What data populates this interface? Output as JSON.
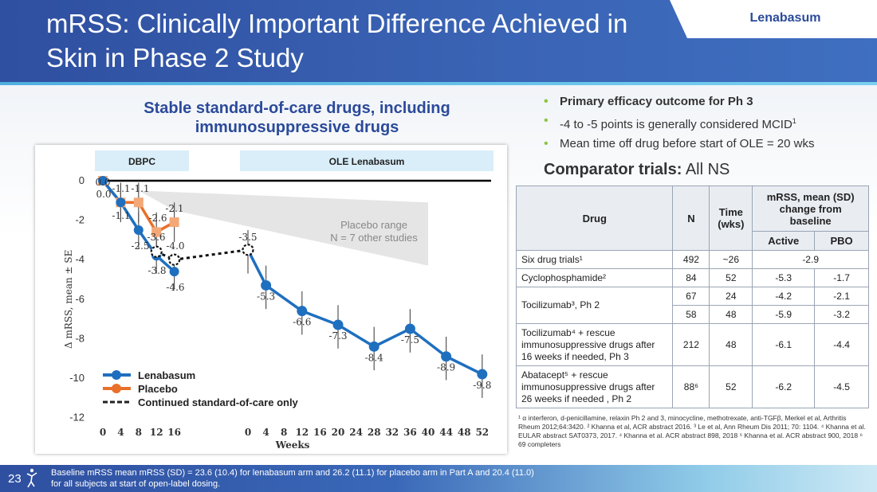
{
  "header": {
    "title": "mRSS: Clinically Important Difference Achieved in Skin in Phase 2 Study",
    "brand": "Lenabasum"
  },
  "chart_heading": "Stable standard-of-care drugs, including immunosuppressive drugs",
  "colors": {
    "lenabasum": "#1f6fbf",
    "placebo": "#e8702a",
    "placebo_marker": "#f4a877",
    "header": "#2f4fa0",
    "bullet": "#8cc63f"
  },
  "chart_data": {
    "type": "line",
    "title": "",
    "xlabel": "Weeks",
    "ylabel": "Δ mRSS, mean ± SE",
    "ylim": [
      -12,
      0
    ],
    "yticks": [
      0,
      -2,
      -4,
      -6,
      -8,
      -10,
      -12
    ],
    "ytick_labels": [
      "0",
      "-2",
      "-4",
      "-6",
      "-8",
      "-10",
      "-12"
    ],
    "xticks_part_a": [
      0,
      4,
      8,
      12,
      16
    ],
    "xticks_ole": [
      0,
      4,
      8,
      12,
      16,
      20,
      24,
      28,
      32,
      36,
      40,
      44,
      48,
      52
    ],
    "section_labels": {
      "part_a": "DBPC",
      "ole": "OLE Lenabasum"
    },
    "series": [
      {
        "name": "Lenabasum",
        "segment": "part_a",
        "x": [
          0,
          4,
          8,
          12,
          16
        ],
        "values": [
          0.0,
          -1.1,
          -2.5,
          -3.8,
          -4.6
        ],
        "labels": [
          "0.0",
          "-1.1",
          "-2.5",
          "-3.8",
          "-4.6"
        ]
      },
      {
        "name": "Placebo",
        "segment": "part_a",
        "x": [
          0,
          4,
          8,
          12,
          16
        ],
        "values": [
          0.0,
          -1.1,
          -1.1,
          -2.6,
          -2.1
        ],
        "labels": [
          "0.0",
          "-1.1",
          "-1.1",
          "-2.6",
          "-2.1"
        ]
      },
      {
        "name": "Lenabasum",
        "segment": "ole",
        "x": [
          0,
          4,
          12,
          20,
          28,
          36,
          44,
          52
        ],
        "values": [
          -3.5,
          -5.3,
          -6.6,
          -7.3,
          -8.4,
          -7.5,
          -8.9,
          -9.8
        ],
        "labels": [
          "-3.5",
          "-5.3",
          "-6.6",
          "-7.3",
          "-8.4",
          "-7.5",
          "-8.9",
          "-9.8"
        ]
      }
    ],
    "extra_labels": [
      "-3.6",
      "-4.0"
    ],
    "placebo_range_label": [
      "Placebo range",
      "N = 7 other studies"
    ],
    "legend": {
      "placement": "bottom-left",
      "items": [
        "Lenabasum",
        "Placebo",
        "Continued standard-of-care only"
      ]
    }
  },
  "bullets": [
    "Primary efficacy outcome for Ph 3",
    "-4 to -5 points is generally considered MCID",
    "Mean time off drug before start of OLE = 20 wks"
  ],
  "bullet_superscript": "1",
  "comparator": {
    "bold": "Comparator trials:",
    "rest": " All NS"
  },
  "table": {
    "headers": {
      "drug": "Drug",
      "n": "N",
      "time": "Time (wks)",
      "mrss": "mRSS, mean (SD) change from baseline",
      "active": "Active",
      "pbo": "PBO"
    },
    "rows": [
      {
        "drug": "Six drug trials¹",
        "n": "492",
        "time": "~26",
        "combined": "-2.9"
      },
      {
        "drug": "Cyclophosphamide²",
        "n": "84",
        "time": "52",
        "active": "-5.3",
        "pbo": "-1.7"
      },
      {
        "drug": "Tocilizumab³, Ph 2",
        "n": "67",
        "time": "24",
        "active": "-4.2",
        "pbo": "-2.1"
      },
      {
        "n": "58",
        "time": "48",
        "active": "-5.9",
        "pbo": "-3.2"
      },
      {
        "drug": "Tocilizumab⁴ + rescue immunosuppressive drugs after 16 weeks if needed, Ph 3",
        "n": "212",
        "time": "48",
        "active": "-6.1",
        "pbo": "-4.4"
      },
      {
        "drug": "Abatacept⁵ + rescue immunosuppressive drugs after 26 weeks if needed , Ph 2",
        "n": "88⁶",
        "time": "52",
        "active": "-6.2",
        "pbo": "-4.5"
      }
    ],
    "footnote": "¹ α interferon, d-penicillamine, relaxin Ph 2 and 3, minocycline, methotrexate, anti-TGFβ, Merkel et al, Arthritis Rheum 2012;64:3420. ² Khanna et al, ACR abstract 2016. ³ Le et al, Ann Rheum Dis 2011; 70: 1104. ⁴ Khanna et al. EULAR abstract SAT0373, 2017. ⁴ Khanna et al. ACR abstract 898, 2018 ⁵ Khanna et al. ACR abstract 900, 2018 ⁶ 69 completers"
  },
  "footer": {
    "page": "23",
    "note": "Baseline mRSS mean mRSS (SD) = 23.6 (10.4) for lenabasum arm and 26.2 (11.1) for placebo arm in Part A and 20.4 (11.0) for all subjects at start of open-label dosing."
  }
}
